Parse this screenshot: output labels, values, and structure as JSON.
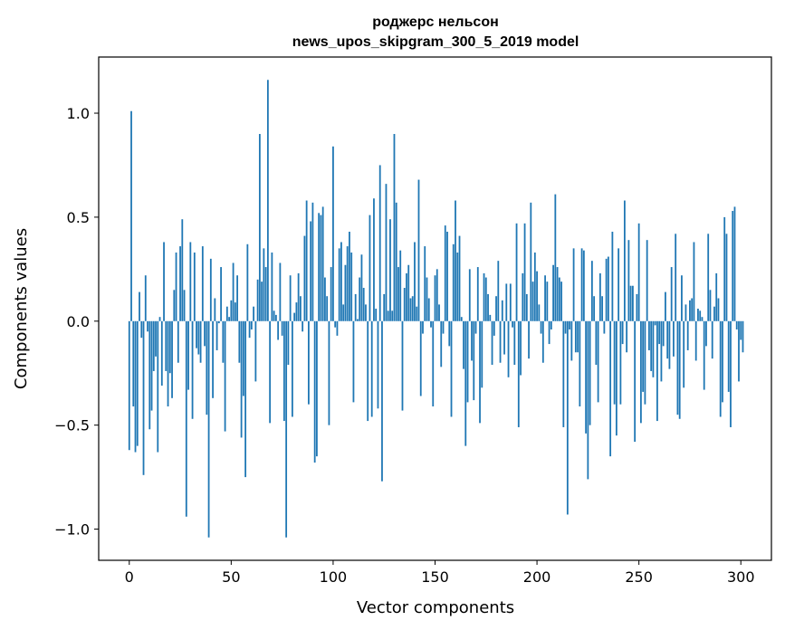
{
  "chart_data": {
    "type": "bar",
    "title": "роджерс нельсон",
    "subtitle": "news_upos_skipgram_300_5_2019 model",
    "xlabel": "Vector components",
    "ylabel": "Components values",
    "xlim": [
      -15,
      315
    ],
    "ylim": [
      -1.15,
      1.27
    ],
    "xticks": [
      0,
      50,
      100,
      150,
      200,
      250,
      300
    ],
    "xtick_labels": [
      "0",
      "50",
      "100",
      "150",
      "200",
      "250",
      "300"
    ],
    "yticks": [
      -1.0,
      -0.5,
      0.0,
      0.5,
      1.0
    ],
    "ytick_labels": [
      "−1.0",
      "−0.5",
      "0.0",
      "0.5",
      "1.0"
    ],
    "grid": false,
    "bar_color": "#1f77b4",
    "values": [
      -0.62,
      1.01,
      -0.41,
      -0.63,
      -0.6,
      0.14,
      -0.08,
      -0.74,
      0.22,
      -0.05,
      -0.52,
      -0.43,
      -0.24,
      -0.17,
      -0.63,
      0.02,
      -0.31,
      0.38,
      -0.24,
      -0.41,
      -0.25,
      -0.37,
      0.15,
      0.33,
      -0.2,
      0.36,
      0.49,
      0.15,
      -0.94,
      -0.33,
      0.38,
      -0.47,
      0.33,
      -0.13,
      -0.16,
      -0.2,
      0.36,
      -0.12,
      -0.45,
      -1.04,
      0.3,
      -0.37,
      0.11,
      -0.14,
      -0.01,
      0.26,
      -0.2,
      -0.53,
      0.07,
      0.02,
      0.1,
      0.28,
      0.09,
      0.22,
      -0.2,
      -0.56,
      -0.36,
      -0.75,
      0.37,
      -0.08,
      -0.04,
      0.07,
      -0.29,
      0.2,
      0.9,
      0.19,
      0.35,
      0.26,
      1.16,
      -0.49,
      0.33,
      0.05,
      0.03,
      -0.09,
      0.28,
      -0.07,
      -0.48,
      -1.04,
      -0.21,
      0.22,
      -0.46,
      0.04,
      0.09,
      0.23,
      0.12,
      -0.05,
      0.41,
      0.58,
      -0.4,
      0.48,
      0.57,
      -0.68,
      -0.65,
      0.52,
      0.51,
      0.55,
      0.21,
      0.12,
      -0.5,
      0.26,
      0.84,
      -0.03,
      -0.07,
      0.35,
      0.38,
      0.08,
      0.27,
      0.36,
      0.43,
      0.33,
      -0.39,
      0.13,
      0.01,
      0.21,
      0.32,
      0.16,
      0.08,
      -0.48,
      0.51,
      -0.46,
      0.59,
      0.06,
      -0.42,
      0.75,
      -0.77,
      0.13,
      0.66,
      0.05,
      0.49,
      0.05,
      0.9,
      0.57,
      0.26,
      0.34,
      -0.43,
      0.16,
      0.23,
      0.27,
      0.11,
      0.12,
      0.38,
      0.07,
      0.68,
      -0.36,
      -0.06,
      0.36,
      0.21,
      0.11,
      -0.03,
      -0.41,
      0.22,
      0.25,
      0.08,
      -0.22,
      -0.06,
      0.46,
      0.43,
      -0.12,
      -0.46,
      0.37,
      0.58,
      0.33,
      0.41,
      0.02,
      -0.23,
      -0.6,
      -0.39,
      0.25,
      -0.19,
      -0.38,
      -0.06,
      0.26,
      -0.49,
      -0.32,
      0.23,
      0.21,
      0.13,
      0.03,
      -0.21,
      -0.07,
      0.12,
      0.29,
      -0.2,
      0.1,
      -0.16,
      0.18,
      -0.27,
      0.18,
      -0.03,
      -0.21,
      0.47,
      -0.51,
      -0.26,
      0.23,
      0.47,
      0.13,
      -0.18,
      0.57,
      0.19,
      0.33,
      0.24,
      0.08,
      -0.06,
      -0.2,
      0.22,
      0.19,
      -0.11,
      -0.04,
      0.27,
      0.61,
      0.26,
      0.21,
      0.19,
      -0.51,
      -0.06,
      -0.93,
      -0.04,
      -0.19,
      0.35,
      -0.15,
      -0.15,
      -0.41,
      0.35,
      0.34,
      -0.54,
      -0.76,
      -0.5,
      0.29,
      0.12,
      -0.21,
      -0.39,
      0.23,
      0.12,
      -0.06,
      0.3,
      0.31,
      -0.65,
      0.43,
      -0.4,
      -0.55,
      0.35,
      -0.4,
      -0.11,
      0.58,
      -0.15,
      0.39,
      0.17,
      0.17,
      -0.58,
      0.13,
      0.47,
      -0.49,
      -0.34,
      -0.4,
      0.39,
      -0.14,
      -0.24,
      -0.27,
      -0.02,
      -0.48,
      -0.11,
      -0.29,
      -0.12,
      0.14,
      -0.18,
      -0.23,
      0.26,
      -0.17,
      0.42,
      -0.45,
      -0.47,
      0.22,
      -0.32,
      0.08,
      -0.14,
      0.1,
      0.11,
      0.38,
      -0.19,
      0.06,
      0.05,
      0.02,
      -0.33,
      -0.12,
      0.42,
      0.15,
      -0.18,
      0.07,
      0.23,
      0.11,
      -0.46,
      -0.39,
      0.5,
      0.42,
      -0.34,
      -0.51,
      0.53,
      0.55,
      -0.04,
      -0.29,
      -0.09,
      -0.15
    ]
  }
}
